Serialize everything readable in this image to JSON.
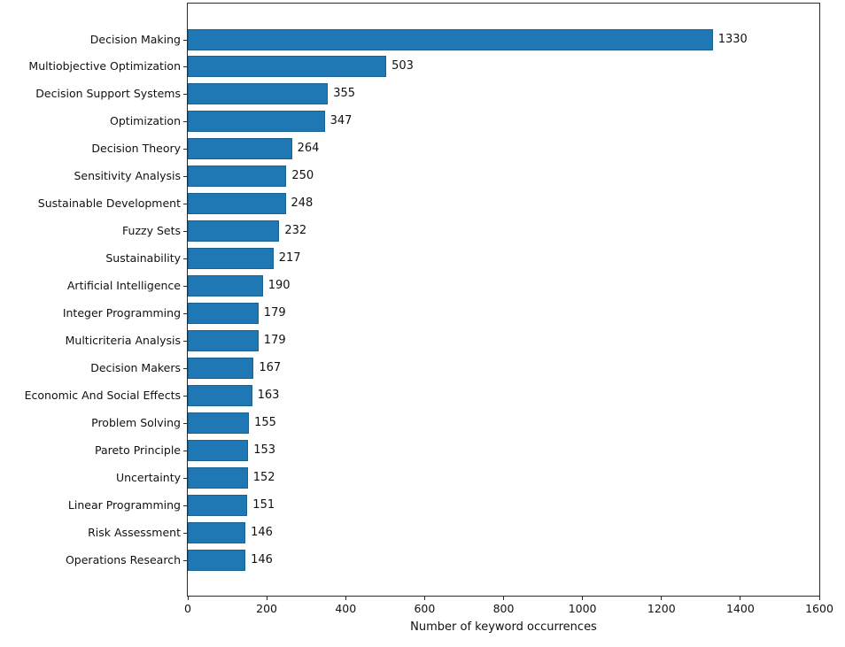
{
  "chart_data": {
    "type": "bar",
    "orientation": "horizontal",
    "title": "",
    "xlabel": "Number of keyword occurrences",
    "ylabel": "",
    "categories": [
      "Decision Making",
      "Multiobjective Optimization",
      "Decision Support Systems",
      "Optimization",
      "Decision Theory",
      "Sensitivity Analysis",
      "Sustainable Development",
      "Fuzzy Sets",
      "Sustainability",
      "Artificial Intelligence",
      "Integer Programming",
      "Multicriteria Analysis",
      "Decision Makers",
      "Economic And Social Effects",
      "Problem Solving",
      "Pareto Principle",
      "Uncertainty",
      "Linear Programming",
      "Risk Assessment",
      "Operations Research"
    ],
    "values": [
      1330,
      503,
      355,
      347,
      264,
      250,
      248,
      232,
      217,
      190,
      179,
      179,
      167,
      163,
      155,
      153,
      152,
      151,
      146,
      146
    ],
    "xlim": [
      0,
      1600
    ],
    "xticks": [
      0,
      200,
      400,
      600,
      800,
      1000,
      1200,
      1400,
      1600
    ],
    "grid": false,
    "legend": null,
    "colors": {
      "bar": "#1f77b4",
      "bar_edge": "#19628f",
      "axis": "#2a2a2a",
      "text": "#111111"
    }
  }
}
